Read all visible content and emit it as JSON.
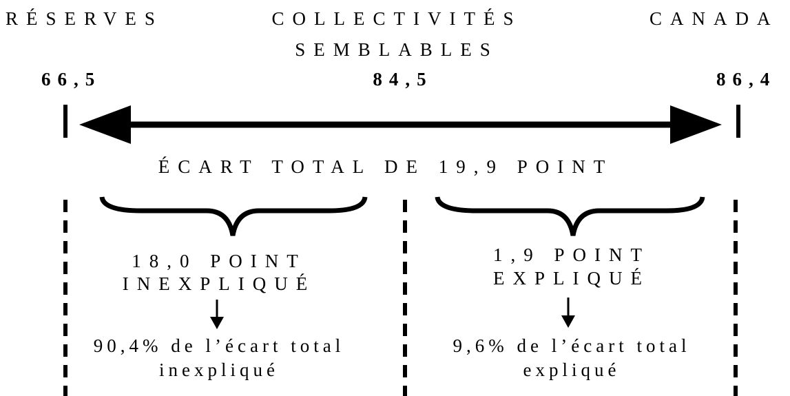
{
  "labels": [
    {
      "lines": [
        "RÉSERVES"
      ],
      "value": "66,5"
    },
    {
      "lines": [
        "COLLECTIVITÉS",
        "SEMBLABLES"
      ],
      "value": "84,5"
    },
    {
      "lines": [
        "CANADA"
      ],
      "value": "86,4"
    }
  ],
  "total": "ÉCART TOTAL DE 19,9 POINT",
  "parts": [
    {
      "lines": [
        "18,0 POINT",
        "INEXPLIQUÉ",
        "90,4% de l’écart total",
        "inexpliqué"
      ]
    },
    {
      "lines": [
        "1,9 POINT",
        "EXPLIQUÉ",
        "9,6% de l’écart total",
        "expliqué"
      ]
    }
  ]
}
